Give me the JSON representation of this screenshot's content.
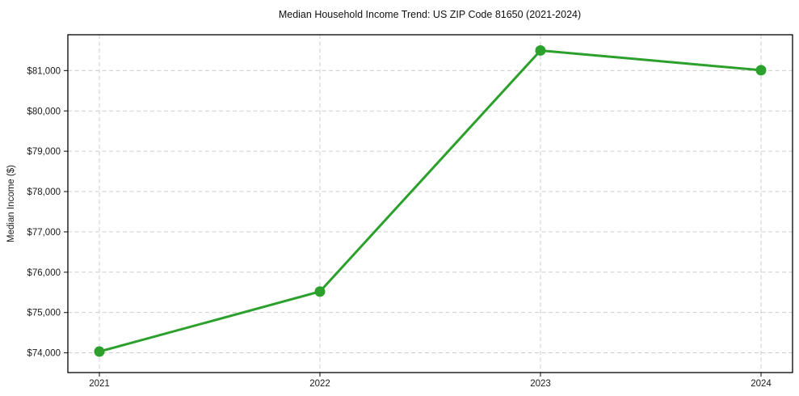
{
  "page": {
    "background_color": "#ffffff"
  },
  "chart_data": {
    "type": "line",
    "title": "Median Household Income Trend: US ZIP Code 81650 (2021-2024)",
    "xlabel": "",
    "ylabel": "Median Income ($)",
    "categories": [
      "2021",
      "2022",
      "2023",
      "2024"
    ],
    "values": [
      74030,
      75520,
      81500,
      81010
    ],
    "y_ticks": [
      74000,
      75000,
      76000,
      77000,
      78000,
      79000,
      80000,
      81000
    ],
    "y_tick_labels": [
      "$74,000",
      "$75,000",
      "$76,000",
      "$77,000",
      "$78,000",
      "$79,000",
      "$80,000",
      "$81,000"
    ],
    "ylim": [
      73510,
      81890
    ],
    "grid": true,
    "grid_style": "dashed",
    "legend_position": "none",
    "marker": "circle",
    "colors": {
      "line": "#2ca02c",
      "marker": "#2ca02c",
      "grid": "#cdcdcd",
      "axis_border": "#000000",
      "tick": "#333333",
      "text": "#1a1a1a",
      "title": "#111111",
      "background": "#ffffff"
    }
  }
}
